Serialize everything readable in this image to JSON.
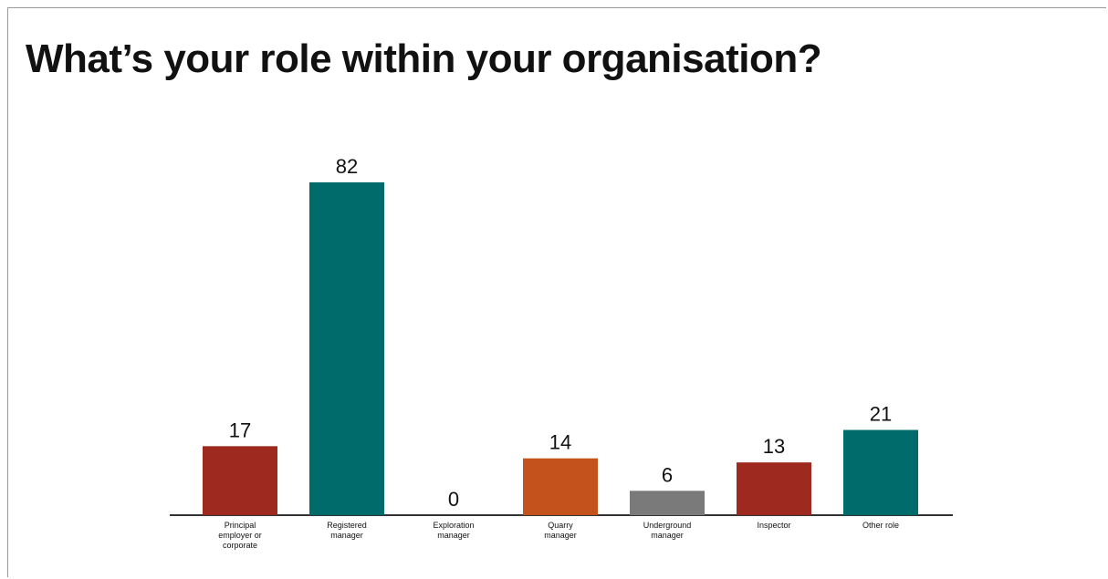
{
  "chart_data": {
    "type": "bar",
    "title": "What’s your role within your organisation?",
    "categories": [
      [
        "Principal",
        "employer or",
        "corporate"
      ],
      [
        "Registered",
        "manager"
      ],
      [
        "Exploration",
        "manager"
      ],
      [
        "Quarry",
        "manager"
      ],
      [
        "Underground",
        "manager"
      ],
      [
        "Inspector"
      ],
      [
        "Other role"
      ]
    ],
    "values": [
      17,
      82,
      0,
      14,
      6,
      13,
      21
    ],
    "colors": [
      "#9e2a1f",
      "#006b6b",
      "#006b6b",
      "#c4521c",
      "#7a7a7a",
      "#9e2a1f",
      "#006b6b"
    ],
    "ylim": [
      0,
      82
    ],
    "grid": false,
    "legend": "none"
  }
}
